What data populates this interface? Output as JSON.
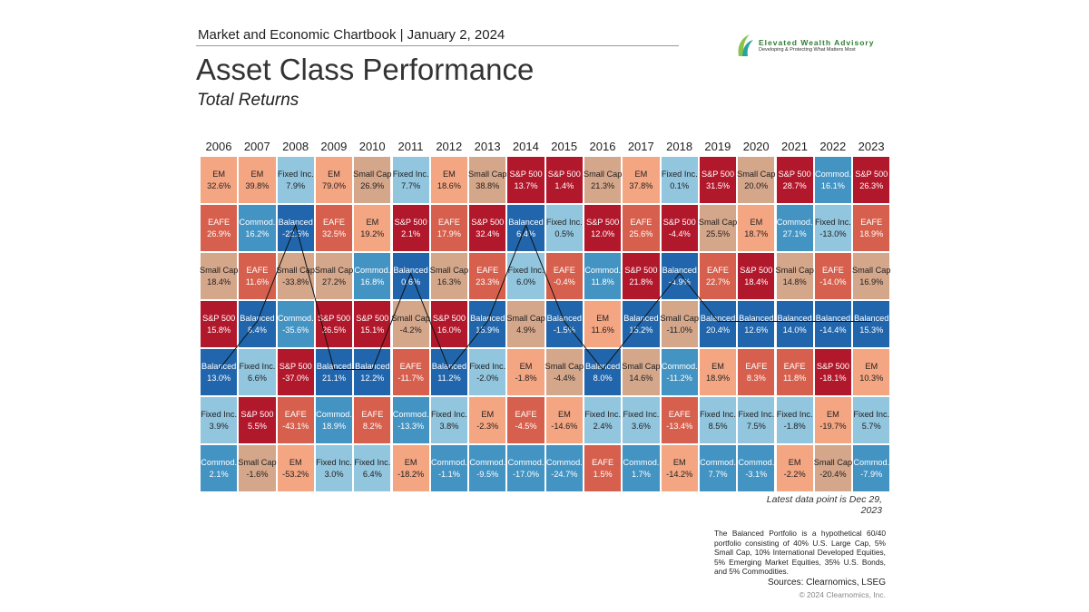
{
  "header": {
    "chartbook": "Market and Economic Chartbook | January 2, 2024",
    "brand_name": "Elevated Wealth Advisory",
    "brand_tagline": "Developing & Protecting What Matters Most"
  },
  "chart_data": {
    "type": "table",
    "title": "Asset Class Performance",
    "subtitle": "Total Returns",
    "years": [
      "2006",
      "2007",
      "2008",
      "2009",
      "2010",
      "2011",
      "2012",
      "2013",
      "2014",
      "2015",
      "2016",
      "2017",
      "2018",
      "2019",
      "2020",
      "2021",
      "2022",
      "2023"
    ],
    "asset_colors": {
      "EM": "#f4a582",
      "Fixed Inc.": "#92c5de",
      "Small Cap": "#d4a68a",
      "S&P 500": "#b2182b",
      "EAFE": "#d6604d",
      "Commod.": "#4393c3",
      "Balanced": "#2166ac"
    },
    "highlight_line_asset": "Balanced",
    "ranks": [
      [
        [
          "EM",
          "32.6%"
        ],
        [
          "EM",
          "39.8%"
        ],
        [
          "Fixed Inc.",
          "7.9%"
        ],
        [
          "EM",
          "79.0%"
        ],
        [
          "Small Cap",
          "26.9%"
        ],
        [
          "Fixed Inc.",
          "7.7%"
        ],
        [
          "EM",
          "18.6%"
        ],
        [
          "Small Cap",
          "38.8%"
        ],
        [
          "S&P 500",
          "13.7%"
        ],
        [
          "S&P 500",
          "1.4%"
        ],
        [
          "Small Cap",
          "21.3%"
        ],
        [
          "EM",
          "37.8%"
        ],
        [
          "Fixed Inc.",
          "0.1%"
        ],
        [
          "S&P 500",
          "31.5%"
        ],
        [
          "Small Cap",
          "20.0%"
        ],
        [
          "S&P 500",
          "28.7%"
        ],
        [
          "Commod.",
          "16.1%"
        ],
        [
          "S&P 500",
          "26.3%"
        ]
      ],
      [
        [
          "EAFE",
          "26.9%"
        ],
        [
          "Commod.",
          "16.2%"
        ],
        [
          "Balanced",
          "-22.5%"
        ],
        [
          "EAFE",
          "32.5%"
        ],
        [
          "EM",
          "19.2%"
        ],
        [
          "S&P 500",
          "2.1%"
        ],
        [
          "EAFE",
          "17.9%"
        ],
        [
          "S&P 500",
          "32.4%"
        ],
        [
          "Balanced",
          "6.4%"
        ],
        [
          "Fixed Inc.",
          "0.5%"
        ],
        [
          "S&P 500",
          "12.0%"
        ],
        [
          "EAFE",
          "25.6%"
        ],
        [
          "S&P 500",
          "-4.4%"
        ],
        [
          "Small Cap",
          "25.5%"
        ],
        [
          "EM",
          "18.7%"
        ],
        [
          "Commod.",
          "27.1%"
        ],
        [
          "Fixed Inc.",
          "-13.0%"
        ],
        [
          "EAFE",
          "18.9%"
        ]
      ],
      [
        [
          "Small Cap",
          "18.4%"
        ],
        [
          "EAFE",
          "11.6%"
        ],
        [
          "Small Cap",
          "-33.8%"
        ],
        [
          "Small Cap",
          "27.2%"
        ],
        [
          "Commod.",
          "16.8%"
        ],
        [
          "Balanced",
          "0.6%"
        ],
        [
          "Small Cap",
          "16.3%"
        ],
        [
          "EAFE",
          "23.3%"
        ],
        [
          "Fixed Inc.",
          "6.0%"
        ],
        [
          "EAFE",
          "-0.4%"
        ],
        [
          "Commod.",
          "11.8%"
        ],
        [
          "S&P 500",
          "21.8%"
        ],
        [
          "Balanced",
          "-4.9%"
        ],
        [
          "EAFE",
          "22.7%"
        ],
        [
          "S&P 500",
          "18.4%"
        ],
        [
          "Small Cap",
          "14.8%"
        ],
        [
          "EAFE",
          "-14.0%"
        ],
        [
          "Small Cap",
          "16.9%"
        ]
      ],
      [
        [
          "S&P 500",
          "15.8%"
        ],
        [
          "Balanced",
          "8.4%"
        ],
        [
          "Commod.",
          "-35.6%"
        ],
        [
          "S&P 500",
          "26.5%"
        ],
        [
          "S&P 500",
          "15.1%"
        ],
        [
          "Small Cap",
          "-4.2%"
        ],
        [
          "S&P 500",
          "16.0%"
        ],
        [
          "Balanced",
          "15.9%"
        ],
        [
          "Small Cap",
          "4.9%"
        ],
        [
          "Balanced",
          "-1.5%"
        ],
        [
          "EM",
          "11.6%"
        ],
        [
          "Balanced",
          "15.2%"
        ],
        [
          "Small Cap",
          "-11.0%"
        ],
        [
          "Balanced",
          "20.4%"
        ],
        [
          "Balanced",
          "12.6%"
        ],
        [
          "Balanced",
          "14.0%"
        ],
        [
          "Balanced",
          "-14.4%"
        ],
        [
          "Balanced",
          "15.3%"
        ]
      ],
      [
        [
          "Balanced",
          "13.0%"
        ],
        [
          "Fixed Inc.",
          "6.6%"
        ],
        [
          "S&P 500",
          "-37.0%"
        ],
        [
          "Balanced",
          "21.1%"
        ],
        [
          "Balanced",
          "12.2%"
        ],
        [
          "EAFE",
          "-11.7%"
        ],
        [
          "Balanced",
          "11.2%"
        ],
        [
          "Fixed Inc.",
          "-2.0%"
        ],
        [
          "EM",
          "-1.8%"
        ],
        [
          "Small Cap",
          "-4.4%"
        ],
        [
          "Balanced",
          "8.0%"
        ],
        [
          "Small Cap",
          "14.6%"
        ],
        [
          "Commod.",
          "-11.2%"
        ],
        [
          "EM",
          "18.9%"
        ],
        [
          "EAFE",
          "8.3%"
        ],
        [
          "EAFE",
          "11.8%"
        ],
        [
          "S&P 500",
          "-18.1%"
        ],
        [
          "EM",
          "10.3%"
        ]
      ],
      [
        [
          "Fixed Inc.",
          "3.9%"
        ],
        [
          "S&P 500",
          "5.5%"
        ],
        [
          "EAFE",
          "-43.1%"
        ],
        [
          "Commod.",
          "18.9%"
        ],
        [
          "EAFE",
          "8.2%"
        ],
        [
          "Commod.",
          "-13.3%"
        ],
        [
          "Fixed Inc.",
          "3.8%"
        ],
        [
          "EM",
          "-2.3%"
        ],
        [
          "EAFE",
          "-4.5%"
        ],
        [
          "EM",
          "-14.6%"
        ],
        [
          "Fixed Inc.",
          "2.4%"
        ],
        [
          "Fixed Inc.",
          "3.6%"
        ],
        [
          "EAFE",
          "-13.4%"
        ],
        [
          "Fixed Inc.",
          "8.5%"
        ],
        [
          "Fixed Inc.",
          "7.5%"
        ],
        [
          "Fixed Inc.",
          "-1.8%"
        ],
        [
          "EM",
          "-19.7%"
        ],
        [
          "Fixed Inc.",
          "5.7%"
        ]
      ],
      [
        [
          "Commod.",
          "2.1%"
        ],
        [
          "Small Cap",
          "-1.6%"
        ],
        [
          "EM",
          "-53.2%"
        ],
        [
          "Fixed Inc.",
          "3.0%"
        ],
        [
          "Fixed Inc.",
          "6.4%"
        ],
        [
          "EM",
          "-18.2%"
        ],
        [
          "Commod.",
          "-1.1%"
        ],
        [
          "Commod.",
          "-9.5%"
        ],
        [
          "Commod.",
          "-17.0%"
        ],
        [
          "Commod.",
          "-24.7%"
        ],
        [
          "EAFE",
          "1.5%"
        ],
        [
          "Commod.",
          "1.7%"
        ],
        [
          "EM",
          "-14.2%"
        ],
        [
          "Commod.",
          "7.7%"
        ],
        [
          "Commod.",
          "-3.1%"
        ],
        [
          "EM",
          "-2.2%"
        ],
        [
          "Small Cap",
          "-20.4%"
        ],
        [
          "Commod.",
          "-7.9%"
        ]
      ]
    ]
  },
  "footer": {
    "latest": "Latest data point is Dec 29, 2023",
    "note": "The Balanced Portfolio is a hypothetical 60/40 portfolio consisting of 40% U.S. Large Cap, 5% Small Cap, 10% International Developed Equities, 5% Emerging Market Equities, 35% U.S. Bonds, and 5% Commodities.",
    "sources": "Sources: Clearnomics, LSEG",
    "copyright": "© 2024 Clearnomics, Inc."
  }
}
